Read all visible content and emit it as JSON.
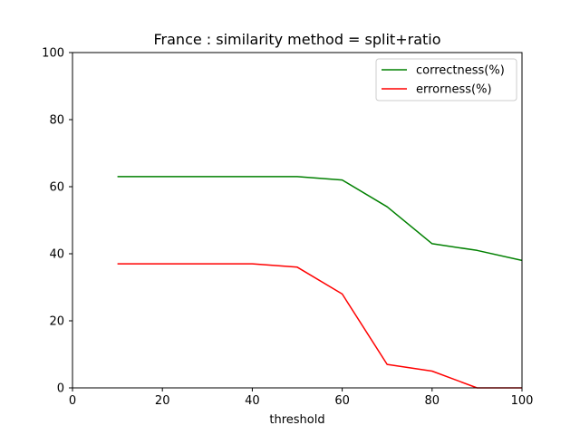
{
  "chart_data": {
    "type": "line",
    "title": "France : similarity method = split+ratio",
    "xlabel": "threshold",
    "ylabel": "",
    "xlim": [
      0,
      100
    ],
    "ylim": [
      0,
      100
    ],
    "x_ticks": [
      "0",
      "20",
      "40",
      "60",
      "80",
      "100"
    ],
    "y_ticks": [
      "0",
      "20",
      "40",
      "60",
      "80",
      "100"
    ],
    "grid": false,
    "legend_position": "top-right",
    "x": [
      10,
      20,
      30,
      40,
      50,
      60,
      70,
      80,
      90,
      100
    ],
    "series": [
      {
        "name": "correctness(%)",
        "color": "#008000",
        "values": [
          63,
          63,
          63,
          63,
          63,
          62,
          54,
          43,
          41,
          38
        ]
      },
      {
        "name": "errorness(%)",
        "color": "#ff0000",
        "values": [
          37,
          37,
          37,
          37,
          36,
          28,
          7,
          5,
          0,
          0
        ]
      }
    ]
  }
}
